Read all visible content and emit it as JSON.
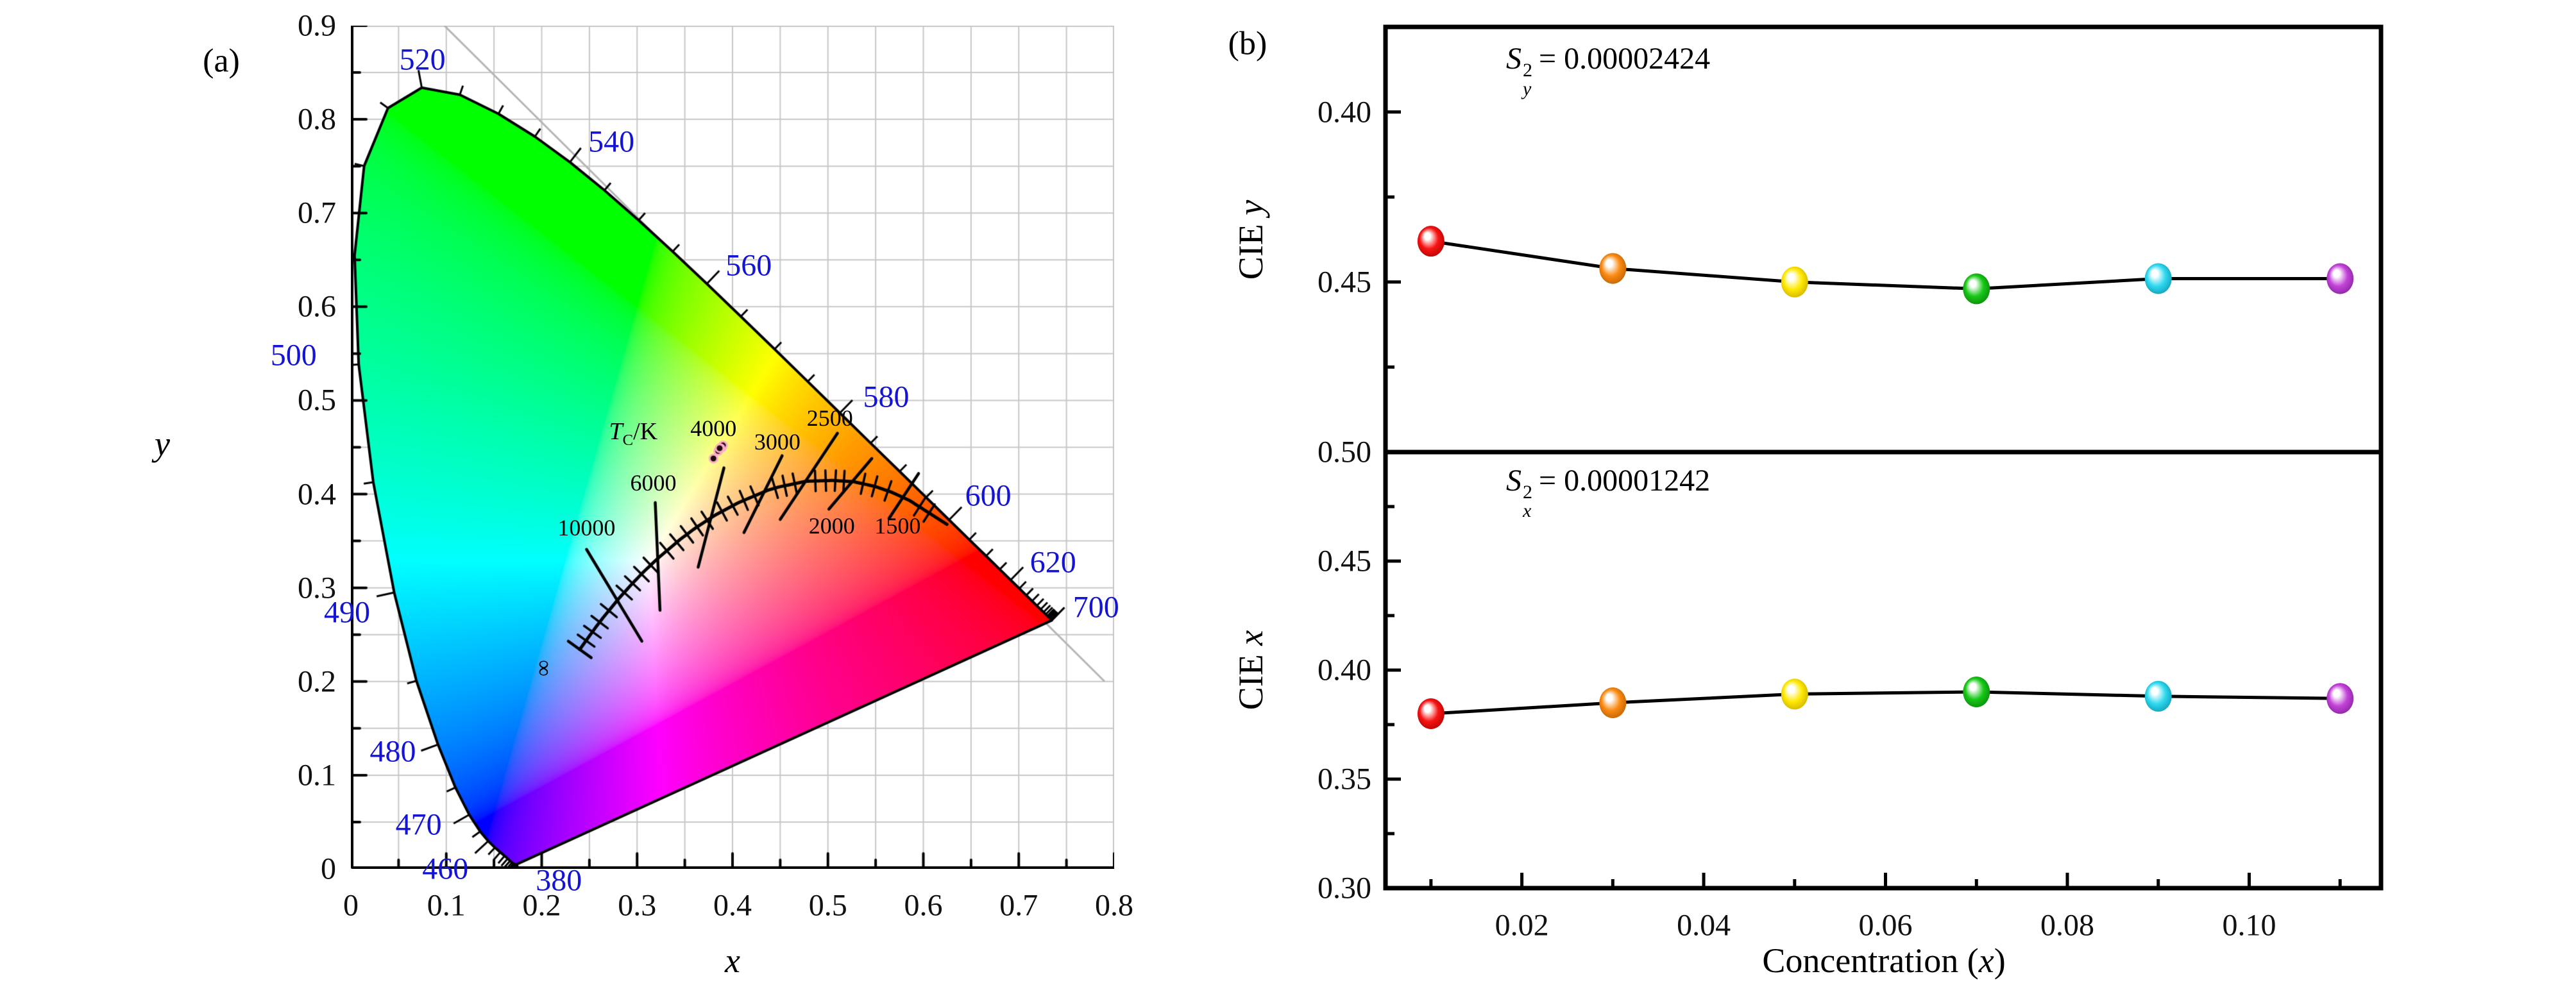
{
  "labels": {
    "panel_a_tag": "(a)",
    "panel_b_tag": "(b)"
  },
  "colors": {
    "wavelength_text": "#1414d6",
    "grid": "#c7c7c7",
    "gray_line": "#b5b5b5",
    "axis": "#000000",
    "sample_dot_fill": "#1a0a0c",
    "sample_dot_stroke": "#ffaac8"
  },
  "point_colors": [
    {
      "name": "red",
      "base": "#f81414",
      "dark": "#a80000"
    },
    {
      "name": "orange",
      "base": "#fb8a12",
      "dark": "#b35b00"
    },
    {
      "name": "yellow",
      "base": "#ffe900",
      "dark": "#c7a800"
    },
    {
      "name": "green",
      "base": "#17c817",
      "dark": "#0a7d0a"
    },
    {
      "name": "cyan",
      "base": "#2fd9ef",
      "dark": "#0b93ab"
    },
    {
      "name": "magenta",
      "base": "#c343d8",
      "dark": "#7e1f96"
    }
  ],
  "chart_data": [
    {
      "type": "scatter",
      "name": "cie_1931_chromaticity_diagram",
      "xlabel": "x",
      "ylabel": "y",
      "xlim": [
        0,
        0.8
      ],
      "ylim": [
        0,
        0.9
      ],
      "xticks": [
        "0",
        "0.1",
        "0.2",
        "0.3",
        "0.4",
        "0.5",
        "0.6",
        "0.7",
        "0.8"
      ],
      "yticks": [
        "0",
        "0.1",
        "0.2",
        "0.3",
        "0.4",
        "0.5",
        "0.6",
        "0.7",
        "0.8",
        "0.9"
      ],
      "grid_step": 0.05,
      "gray_line": [
        [
          0.098,
          0.9
        ],
        [
          0.79,
          0.2
        ]
      ],
      "spectral_locus": [
        [
          380,
          0.1741,
          0.005
        ],
        [
          385,
          0.174,
          0.005
        ],
        [
          390,
          0.1738,
          0.0049
        ],
        [
          395,
          0.1736,
          0.0049
        ],
        [
          400,
          0.1733,
          0.0048
        ],
        [
          405,
          0.173,
          0.0048
        ],
        [
          410,
          0.1726,
          0.0048
        ],
        [
          415,
          0.1721,
          0.0048
        ],
        [
          420,
          0.1714,
          0.0051
        ],
        [
          425,
          0.1703,
          0.0058
        ],
        [
          430,
          0.1689,
          0.0069
        ],
        [
          435,
          0.1669,
          0.0086
        ],
        [
          440,
          0.1644,
          0.0109
        ],
        [
          445,
          0.1611,
          0.0138
        ],
        [
          450,
          0.1566,
          0.0177
        ],
        [
          455,
          0.151,
          0.0227
        ],
        [
          460,
          0.144,
          0.0297
        ],
        [
          465,
          0.1355,
          0.0399
        ],
        [
          470,
          0.1241,
          0.0578
        ],
        [
          475,
          0.1096,
          0.0868
        ],
        [
          480,
          0.0913,
          0.1327
        ],
        [
          485,
          0.0687,
          0.2007
        ],
        [
          490,
          0.0454,
          0.295
        ],
        [
          495,
          0.0235,
          0.4127
        ],
        [
          500,
          0.0082,
          0.5384
        ],
        [
          505,
          0.0039,
          0.6548
        ],
        [
          510,
          0.0139,
          0.7502
        ],
        [
          515,
          0.0389,
          0.812
        ],
        [
          520,
          0.0743,
          0.8338
        ],
        [
          525,
          0.1142,
          0.8262
        ],
        [
          530,
          0.1547,
          0.8059
        ],
        [
          535,
          0.1929,
          0.7816
        ],
        [
          540,
          0.2296,
          0.7543
        ],
        [
          545,
          0.2658,
          0.7243
        ],
        [
          550,
          0.3016,
          0.6923
        ],
        [
          555,
          0.3373,
          0.6589
        ],
        [
          560,
          0.3731,
          0.6245
        ],
        [
          565,
          0.4087,
          0.5896
        ],
        [
          570,
          0.4441,
          0.5547
        ],
        [
          575,
          0.4788,
          0.5202
        ],
        [
          580,
          0.5125,
          0.4866
        ],
        [
          585,
          0.5448,
          0.4544
        ],
        [
          590,
          0.5752,
          0.4242
        ],
        [
          595,
          0.6029,
          0.3965
        ],
        [
          600,
          0.627,
          0.3725
        ],
        [
          605,
          0.6482,
          0.3514
        ],
        [
          610,
          0.6658,
          0.334
        ],
        [
          615,
          0.6801,
          0.3197
        ],
        [
          620,
          0.6915,
          0.3083
        ],
        [
          625,
          0.7006,
          0.2993
        ],
        [
          630,
          0.7079,
          0.292
        ],
        [
          635,
          0.714,
          0.2859
        ],
        [
          640,
          0.719,
          0.2809
        ],
        [
          645,
          0.723,
          0.277
        ],
        [
          650,
          0.726,
          0.274
        ],
        [
          655,
          0.7283,
          0.2717
        ],
        [
          660,
          0.73,
          0.27
        ],
        [
          665,
          0.7311,
          0.2689
        ],
        [
          670,
          0.732,
          0.268
        ],
        [
          675,
          0.7327,
          0.2673
        ],
        [
          680,
          0.7334,
          0.2666
        ],
        [
          685,
          0.734,
          0.266
        ],
        [
          690,
          0.7344,
          0.2656
        ],
        [
          695,
          0.7346,
          0.2654
        ],
        [
          700,
          0.7347,
          0.2653
        ]
      ],
      "wavelength_labels": [
        {
          "nm": "380",
          "lx": 0.218,
          "ly": -0.012
        },
        {
          "nm": "460",
          "lx": 0.099,
          "ly": 0.0
        },
        {
          "nm": "470",
          "lx": 0.071,
          "ly": 0.047
        },
        {
          "nm": "480",
          "lx": 0.044,
          "ly": 0.125
        },
        {
          "nm": "490",
          "lx": -0.004,
          "ly": 0.274
        },
        {
          "nm": "500",
          "lx": -0.06,
          "ly": 0.548
        },
        {
          "nm": "520",
          "lx": 0.075,
          "ly": 0.864
        },
        {
          "nm": "540",
          "lx": 0.273,
          "ly": 0.776
        },
        {
          "nm": "560",
          "lx": 0.417,
          "ly": 0.644
        },
        {
          "nm": "580",
          "lx": 0.561,
          "ly": 0.504
        },
        {
          "nm": "600",
          "lx": 0.668,
          "ly": 0.398
        },
        {
          "nm": "620",
          "lx": 0.736,
          "ly": 0.327
        },
        {
          "nm": "700",
          "lx": 0.781,
          "ly": 0.279
        }
      ],
      "planck_curve_mired": [
        [
          0,
          0.2399,
          0.2342
        ],
        [
          50,
          0.2565,
          0.2577
        ],
        [
          67,
          0.2637,
          0.2673
        ],
        [
          100,
          0.2807,
          0.2884
        ],
        [
          125,
          0.2952,
          0.3048
        ],
        [
          143,
          0.3064,
          0.3166
        ],
        [
          167,
          0.3221,
          0.3318
        ],
        [
          200,
          0.3451,
          0.3516
        ],
        [
          222,
          0.3608,
          0.3636
        ],
        [
          250,
          0.3805,
          0.3768
        ],
        [
          286,
          0.4059,
          0.3907
        ],
        [
          333,
          0.4369,
          0.4041
        ],
        [
          350,
          0.4476,
          0.4074
        ],
        [
          400,
          0.477,
          0.4137
        ],
        [
          450,
          0.5042,
          0.4146
        ],
        [
          500,
          0.5267,
          0.4133
        ],
        [
          556,
          0.5493,
          0.4082
        ],
        [
          600,
          0.5669,
          0.402
        ],
        [
          667,
          0.5857,
          0.3931
        ],
        [
          733,
          0.6035,
          0.3815
        ],
        [
          833,
          0.6249,
          0.3676
        ]
      ],
      "planck_title": {
        "sym": "T",
        "sub": "C",
        "rest": "/K",
        "x": 0.296,
        "y": 0.465
      },
      "infinity": {
        "symbol": "∞",
        "x": 0.203,
        "y": 0.214
      },
      "isotherms": [
        {
          "t": "10000",
          "x1": 0.247,
          "y1": 0.341,
          "x2": 0.305,
          "y2": 0.243,
          "lx": 0.247,
          "ly": 0.364
        },
        {
          "t": "6000",
          "x1": 0.319,
          "y1": 0.391,
          "x2": 0.324,
          "y2": 0.276,
          "lx": 0.317,
          "ly": 0.412
        },
        {
          "t": "4000",
          "x1": 0.391,
          "y1": 0.428,
          "x2": 0.364,
          "y2": 0.322,
          "lx": 0.38,
          "ly": 0.47
        },
        {
          "t": "3000",
          "x1": 0.452,
          "y1": 0.441,
          "x2": 0.412,
          "y2": 0.359,
          "lx": 0.447,
          "ly": 0.456
        },
        {
          "t": "2500",
          "x1": 0.51,
          "y1": 0.465,
          "x2": 0.45,
          "y2": 0.373,
          "lx": 0.502,
          "ly": 0.481
        },
        {
          "t": "2000",
          "x1": 0.546,
          "y1": 0.438,
          "x2": 0.501,
          "y2": 0.384,
          "lx": 0.504,
          "ly": 0.366
        },
        {
          "t": "1500",
          "x1": 0.595,
          "y1": 0.422,
          "x2": 0.564,
          "y2": 0.374,
          "lx": 0.573,
          "ly": 0.366
        }
      ],
      "hatch_mireds": [
        20,
        40,
        60,
        80,
        110,
        125,
        140,
        155,
        180,
        195,
        210,
        225,
        240,
        262,
        278,
        295,
        312,
        345,
        362,
        380,
        418,
        438,
        458,
        478,
        525,
        555,
        590,
        705,
        745
      ],
      "sample_points": [
        [
          0.38,
          0.438
        ],
        [
          0.385,
          0.446
        ],
        [
          0.389,
          0.45
        ],
        [
          0.39,
          0.452
        ],
        [
          0.3875,
          0.449
        ],
        [
          0.3865,
          0.449
        ]
      ]
    },
    {
      "type": "line",
      "name": "cie_y_vs_concentration",
      "annotation": {
        "sym": "S",
        "sup": "2",
        "sub": "y",
        "eq": "= 0.00002424"
      },
      "ylabel": {
        "prefix": "CIE ",
        "var": "y"
      },
      "x": [
        0.01,
        0.03,
        0.05,
        0.07,
        0.09,
        0.11
      ],
      "y": [
        0.438,
        0.446,
        0.45,
        0.452,
        0.449,
        0.449
      ],
      "ylim_top_to_bottom": [
        0.375,
        0.5
      ],
      "axis_inverted": true,
      "yticks": [
        {
          "v": 0.4,
          "t": "0.40"
        },
        {
          "v": 0.45,
          "t": "0.45"
        },
        {
          "v": 0.5,
          "t": "0.50"
        }
      ],
      "yticks_minor": [
        0.425,
        0.475
      ]
    },
    {
      "type": "line",
      "name": "cie_x_vs_concentration",
      "annotation": {
        "sym": "S",
        "sup": "2",
        "sub": "x",
        "eq": "= 0.00001242"
      },
      "ylabel": {
        "prefix": "CIE ",
        "var": "x"
      },
      "xlabel": {
        "prefix": "Concentration (",
        "var": "x",
        "suffix": ")"
      },
      "x": [
        0.01,
        0.03,
        0.05,
        0.07,
        0.09,
        0.11
      ],
      "y": [
        0.38,
        0.385,
        0.389,
        0.39,
        0.388,
        0.387
      ],
      "ylim_top_to_bottom": [
        0.5,
        0.3
      ],
      "axis_inverted": false,
      "yticks": [
        {
          "v": 0.45,
          "t": "0.45"
        },
        {
          "v": 0.4,
          "t": "0.40"
        },
        {
          "v": 0.35,
          "t": "0.35"
        },
        {
          "v": 0.3,
          "t": "0.30"
        }
      ],
      "yticks_minor": [
        0.475,
        0.425,
        0.375,
        0.325
      ],
      "xticks": [
        {
          "v": 0.02,
          "t": "0.02"
        },
        {
          "v": 0.04,
          "t": "0.04"
        },
        {
          "v": 0.06,
          "t": "0.06"
        },
        {
          "v": 0.08,
          "t": "0.08"
        },
        {
          "v": 0.1,
          "t": "0.10"
        }
      ],
      "xticks_minor": [
        0.01,
        0.03,
        0.05,
        0.07,
        0.09,
        0.11
      ],
      "divider_tick": {
        "v": 0.5,
        "t": "0.50"
      }
    }
  ]
}
